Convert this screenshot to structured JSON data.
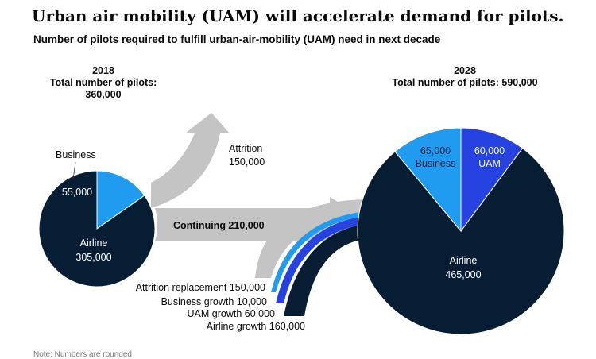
{
  "title": "Urban air mobility (UAM) will accelerate demand for pilots.",
  "subtitle": "Number of pilots required to fulfill urban-air-mobility (UAM) need in next decade",
  "left_block": {
    "year": "2018",
    "total_label": "Total number of pilots:",
    "total_value": "360,000"
  },
  "right_block": {
    "year": "2028",
    "total_text": "Total number of pilots: 590,000"
  },
  "note": "Note: Numbers are rounded",
  "colors": {
    "airline": "#071d33",
    "business": "#1f9cf0",
    "uam": "#2642e0",
    "flow": "#c4c4c4",
    "white": "#ffffff"
  },
  "flows": {
    "attrition": {
      "label": "Attrition",
      "value_text": "150,000"
    },
    "continuing": {
      "text": "Continuing 210,000"
    },
    "attrition_replacement": {
      "text": "Attrition replacement 150,000"
    },
    "business_growth": {
      "text": "Business growth 10,000"
    },
    "uam_growth": {
      "text": "UAM growth 60,000"
    },
    "airline_growth": {
      "text": "Airline growth 160,000"
    }
  },
  "chart_data": [
    {
      "type": "pie",
      "year": "2018",
      "total": 360000,
      "slices": [
        {
          "name": "Airline",
          "value": 305000,
          "value_text": "305,000",
          "color": "#071d33"
        },
        {
          "name": "Business",
          "value": 55000,
          "value_text": "55,000",
          "color": "#1f9cf0"
        }
      ]
    },
    {
      "type": "pie",
      "year": "2028",
      "total": 590000,
      "slices": [
        {
          "name": "Airline",
          "value": 465000,
          "value_text": "465,000",
          "color": "#071d33"
        },
        {
          "name": "Business",
          "value": 65000,
          "value_text": "65,000",
          "color": "#1f9cf0"
        },
        {
          "name": "UAM",
          "value": 60000,
          "value_text": "60,000",
          "color": "#2642e0"
        }
      ]
    }
  ]
}
